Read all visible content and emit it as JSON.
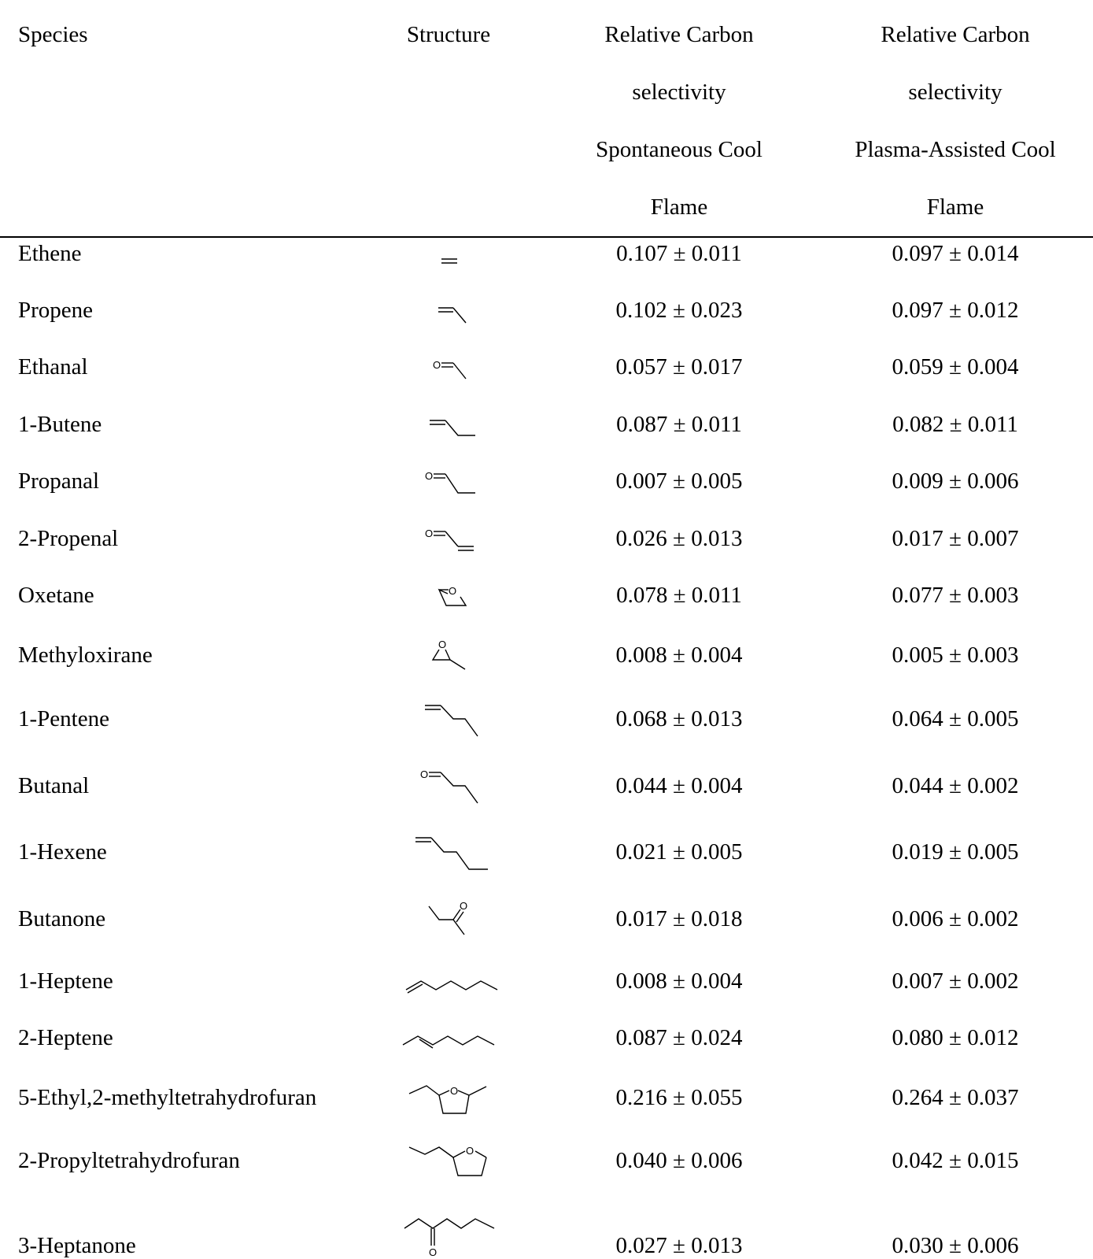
{
  "table": {
    "headers": {
      "species": "Species",
      "structure": "Structure",
      "spontaneous": [
        "Relative Carbon",
        "selectivity",
        "Spontaneous Cool",
        "Flame"
      ],
      "plasma": [
        "Relative Carbon",
        "selectivity",
        "Plasma-Assisted Cool",
        "Flame"
      ]
    },
    "rows": [
      {
        "species": "Ethene",
        "structure_icon": "ethene-structure-icon",
        "spontaneous": "0.107 ± 0.011",
        "plasma": "0.097 ± 0.014"
      },
      {
        "species": "Propene",
        "structure_icon": "propene-structure-icon",
        "spontaneous": "0.102 ± 0.023",
        "plasma": "0.097 ± 0.012"
      },
      {
        "species": "Ethanal",
        "structure_icon": "ethanal-structure-icon",
        "spontaneous": "0.057 ± 0.017",
        "plasma": "0.059 ± 0.004"
      },
      {
        "species": "1-Butene",
        "structure_icon": "butene-structure-icon",
        "spontaneous": "0.087 ± 0.011",
        "plasma": "0.082 ± 0.011"
      },
      {
        "species": "Propanal",
        "structure_icon": "propanal-structure-icon",
        "spontaneous": "0.007 ± 0.005",
        "plasma": "0.009 ± 0.006"
      },
      {
        "species": "2-Propenal",
        "structure_icon": "propenal-structure-icon",
        "spontaneous": "0.026 ± 0.013",
        "plasma": "0.017 ± 0.007"
      },
      {
        "species": "Oxetane",
        "structure_icon": "oxetane-structure-icon",
        "spontaneous": "0.078 ± 0.011",
        "plasma": "0.077 ± 0.003"
      },
      {
        "species": "Methyloxirane",
        "structure_icon": "methyloxirane-structure-icon",
        "spontaneous": "0.008 ± 0.004",
        "plasma": "0.005 ± 0.003"
      },
      {
        "species": "1-Pentene",
        "structure_icon": "pentene-structure-icon",
        "spontaneous": "0.068 ± 0.013",
        "plasma": "0.064 ± 0.005"
      },
      {
        "species": "Butanal",
        "structure_icon": "butanal-structure-icon",
        "spontaneous": "0.044 ± 0.004",
        "plasma": "0.044 ± 0.002"
      },
      {
        "species": "1-Hexene",
        "structure_icon": "hexene-structure-icon",
        "spontaneous": "0.021 ± 0.005",
        "plasma": "0.019 ± 0.005"
      },
      {
        "species": "Butanone",
        "structure_icon": "butanone-structure-icon",
        "spontaneous": "0.017 ± 0.018",
        "plasma": "0.006 ± 0.002"
      },
      {
        "species": "1-Heptene",
        "structure_icon": "1-heptene-structure-icon",
        "spontaneous": "0.008 ± 0.004",
        "plasma": "0.007 ± 0.002"
      },
      {
        "species": "2-Heptene",
        "structure_icon": "2-heptene-structure-icon",
        "spontaneous": "0.087 ± 0.024",
        "plasma": "0.080 ± 0.012"
      },
      {
        "species": "5-Ethyl,2-methyltetrahydrofuran",
        "structure_icon": "ethylmethyltetrahydrofuran-structure-icon",
        "spontaneous": "0.216 ± 0.055",
        "plasma": "0.264 ± 0.037"
      },
      {
        "species": "2-Propyltetrahydrofuran",
        "structure_icon": "propyltetrahydrofuran-structure-icon",
        "spontaneous": "0.040 ± 0.006",
        "plasma": "0.042 ± 0.015"
      },
      {
        "species": "3-Heptanone",
        "structure_icon": "heptanone-structure-icon",
        "spontaneous": "0.027 ± 0.013",
        "plasma": "0.030 ± 0.006"
      }
    ],
    "atom_label": "O"
  }
}
